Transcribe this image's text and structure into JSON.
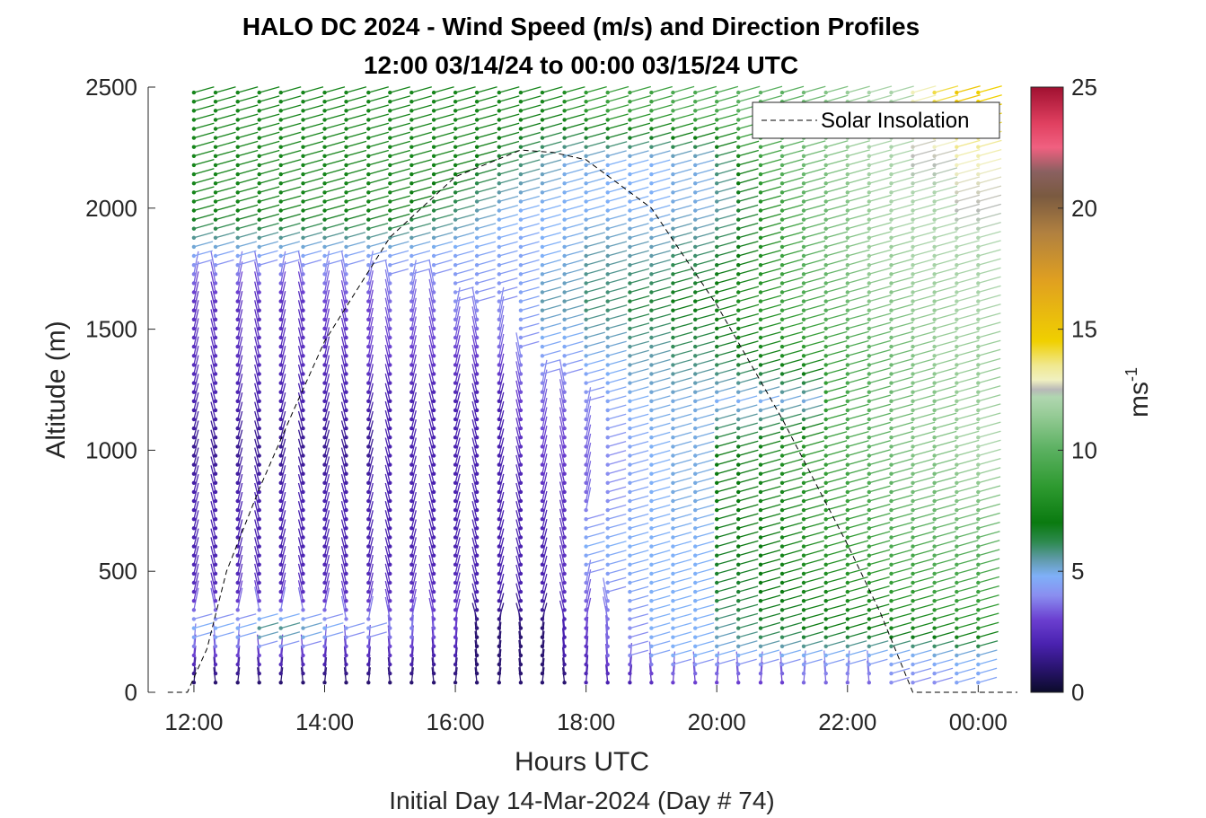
{
  "chart_data": {
    "type": "wind_barb_profile",
    "title_line1": "HALO DC 2024 - Wind Speed (m/s) and Direction Profiles",
    "title_line2": "12:00 03/14/24 to 00:00 03/15/24  UTC",
    "xlabel": "Hours UTC",
    "xlabel2": "Initial Day 14-Mar-2024 (Day # 74)",
    "ylabel": "Altitude (m)",
    "x_ticks": [
      "12:00",
      "14:00",
      "16:00",
      "18:00",
      "20:00",
      "22:00",
      "00:00"
    ],
    "x_tick_hours": [
      12,
      14,
      16,
      18,
      20,
      22,
      24
    ],
    "xlim_hours": [
      11.3,
      24.6
    ],
    "y_ticks": [
      "0",
      "500",
      "1000",
      "1500",
      "2000",
      "2500"
    ],
    "y_tick_values": [
      0,
      500,
      1000,
      1500,
      2000,
      2500
    ],
    "ylim": [
      0,
      2500
    ],
    "colorbar": {
      "label": "ms",
      "label_exponent": "-1",
      "ticks": [
        "0",
        "5",
        "10",
        "15",
        "20",
        "25"
      ],
      "tick_values": [
        0,
        5,
        10,
        15,
        20,
        25
      ],
      "range": [
        0,
        25
      ],
      "stops": [
        {
          "v": 0,
          "c": "#0b0b2a"
        },
        {
          "v": 1,
          "c": "#2a1470"
        },
        {
          "v": 2,
          "c": "#4a22b0"
        },
        {
          "v": 3,
          "c": "#6b3fd0"
        },
        {
          "v": 4,
          "c": "#8a8ef0"
        },
        {
          "v": 4.8,
          "c": "#7fb0f8"
        },
        {
          "v": 5.5,
          "c": "#5f9aa8"
        },
        {
          "v": 6.2,
          "c": "#2e8a50"
        },
        {
          "v": 7,
          "c": "#0a7a10"
        },
        {
          "v": 8.5,
          "c": "#2e9a30"
        },
        {
          "v": 10,
          "c": "#5ab060"
        },
        {
          "v": 11.5,
          "c": "#98cc98"
        },
        {
          "v": 12.2,
          "c": "#b0d6b0"
        },
        {
          "v": 12.5,
          "c": "#b8b8b8"
        },
        {
          "v": 12.9,
          "c": "#f0f0c0"
        },
        {
          "v": 13.5,
          "c": "#f0e890"
        },
        {
          "v": 14.5,
          "c": "#f0d000"
        },
        {
          "v": 17,
          "c": "#e0a020"
        },
        {
          "v": 19,
          "c": "#b08040"
        },
        {
          "v": 20.5,
          "c": "#7a5a40"
        },
        {
          "v": 21.5,
          "c": "#8a6060"
        },
        {
          "v": 22.5,
          "c": "#f06080"
        },
        {
          "v": 23.5,
          "c": "#e04060"
        },
        {
          "v": 25,
          "c": "#a01030"
        }
      ]
    },
    "legend": {
      "entries": [
        "Solar Insolation"
      ],
      "position": "top-right"
    },
    "solar_insolation": {
      "hours": [
        11.6,
        11.9,
        12.0,
        12.2,
        12.5,
        13.0,
        13.5,
        14.0,
        15.0,
        16.0,
        17.0,
        17.5,
        18.0,
        19.0,
        20.0,
        21.0,
        22.0,
        22.5,
        23.0,
        23.5,
        24.0,
        24.6
      ],
      "values": [
        0,
        0,
        60,
        180,
        500,
        840,
        1150,
        1450,
        1880,
        2130,
        2240,
        2230,
        2200,
        2000,
        1600,
        1130,
        610,
        330,
        0,
        0,
        0,
        0
      ]
    },
    "profile_hours": [
      12.0,
      12.33,
      12.67,
      13.0,
      13.33,
      13.67,
      14.0,
      14.33,
      14.67,
      15.0,
      15.33,
      15.67,
      16.0,
      16.33,
      16.67,
      17.0,
      17.33,
      17.67,
      18.0,
      18.33,
      18.67,
      19.0,
      19.33,
      19.67,
      20.0,
      20.33,
      20.67,
      21.0,
      21.33,
      21.67,
      22.0,
      22.33,
      22.67,
      23.0,
      23.33,
      23.67,
      24.0
    ],
    "altitude_levels": [
      50,
      150,
      250,
      400,
      600,
      800,
      1000,
      1200,
      1400,
      1600,
      1800,
      2000,
      2200,
      2400
    ],
    "wind_speed": [
      [
        1.0,
        3.0,
        5.0,
        2.5,
        2.0,
        2.0,
        1.5,
        2.0,
        2.5,
        2.5,
        4.5,
        7.5,
        7.5,
        7.5
      ],
      [
        1.0,
        3.0,
        5.0,
        2.5,
        2.0,
        2.0,
        1.5,
        2.0,
        2.5,
        2.5,
        4.5,
        7.5,
        7.5,
        7.5
      ],
      [
        1.0,
        3.0,
        5.0,
        2.5,
        2.0,
        2.0,
        1.5,
        2.0,
        2.5,
        2.5,
        4.5,
        7.5,
        7.5,
        7.5
      ],
      [
        1.0,
        3.0,
        6.0,
        2.5,
        2.0,
        2.0,
        1.5,
        2.0,
        2.5,
        2.5,
        4.5,
        7.5,
        7.5,
        7.5
      ],
      [
        1.0,
        3.0,
        6.0,
        2.5,
        2.0,
        2.0,
        1.5,
        2.0,
        2.5,
        2.5,
        4.5,
        7.5,
        7.5,
        7.5
      ],
      [
        1.0,
        3.0,
        5.5,
        2.5,
        2.0,
        2.0,
        1.5,
        2.0,
        2.5,
        2.5,
        4.5,
        7.5,
        7.5,
        7.5
      ],
      [
        1.0,
        2.5,
        5.0,
        2.5,
        2.0,
        2.0,
        1.5,
        2.0,
        2.5,
        3.0,
        4.5,
        7.5,
        7.5,
        7.5
      ],
      [
        1.0,
        2.5,
        4.5,
        2.5,
        2.0,
        2.0,
        1.5,
        2.0,
        2.5,
        3.0,
        4.5,
        7.5,
        7.5,
        7.5
      ],
      [
        1.0,
        2.5,
        4.5,
        2.5,
        2.0,
        2.0,
        1.5,
        2.0,
        3.0,
        3.0,
        4.5,
        7.5,
        7.5,
        7.5
      ],
      [
        1.0,
        2.5,
        4.0,
        2.5,
        2.0,
        2.0,
        2.0,
        2.0,
        3.0,
        3.5,
        4.5,
        7.5,
        7.5,
        7.5
      ],
      [
        1.0,
        2.5,
        4.0,
        2.5,
        2.0,
        2.0,
        2.0,
        2.0,
        3.0,
        3.5,
        4.5,
        7.0,
        7.5,
        7.5
      ],
      [
        1.0,
        2.0,
        3.5,
        2.5,
        2.0,
        2.0,
        2.0,
        2.0,
        3.0,
        3.5,
        4.5,
        6.5,
        7.5,
        7.5
      ],
      [
        1.0,
        2.0,
        3.0,
        2.5,
        2.0,
        2.0,
        2.0,
        2.0,
        3.0,
        4.0,
        4.5,
        6.0,
        7.5,
        7.5
      ],
      [
        1.0,
        1.0,
        1.0,
        2.0,
        2.0,
        2.0,
        2.0,
        2.0,
        3.0,
        4.0,
        4.5,
        5.5,
        7.0,
        7.5
      ],
      [
        1.0,
        1.0,
        1.0,
        2.0,
        2.0,
        2.0,
        2.0,
        2.0,
        3.5,
        4.0,
        4.5,
        5.0,
        6.5,
        7.5
      ],
      [
        1.0,
        1.0,
        1.0,
        2.0,
        2.0,
        2.0,
        2.5,
        3.0,
        4.0,
        4.5,
        4.5,
        4.8,
        6.0,
        7.5
      ],
      [
        1.0,
        1.0,
        1.0,
        2.0,
        2.0,
        2.5,
        3.0,
        3.5,
        4.5,
        5.5,
        4.8,
        4.8,
        5.5,
        7.5
      ],
      [
        1.0,
        2.0,
        2.0,
        2.5,
        2.5,
        2.5,
        3.0,
        3.5,
        4.5,
        5.5,
        5.0,
        4.8,
        5.0,
        8.0
      ],
      [
        2.0,
        2.5,
        3.0,
        3.5,
        4.8,
        3.5,
        3.5,
        4.0,
        5.0,
        6.0,
        5.5,
        4.8,
        5.0,
        8.5
      ],
      [
        2.0,
        3.5,
        3.5,
        4.0,
        4.8,
        4.0,
        4.0,
        4.5,
        5.0,
        6.0,
        5.5,
        4.8,
        4.8,
        9.0
      ],
      [
        2.0,
        4.0,
        4.0,
        4.5,
        4.8,
        4.5,
        4.5,
        4.8,
        5.5,
        6.5,
        5.5,
        4.8,
        4.8,
        9.0
      ],
      [
        2.5,
        4.5,
        4.8,
        4.8,
        4.8,
        4.8,
        4.8,
        5.0,
        5.5,
        6.5,
        5.5,
        4.8,
        4.8,
        9.0
      ],
      [
        3.0,
        4.8,
        4.8,
        4.8,
        4.8,
        5.0,
        5.0,
        5.0,
        6.0,
        7.0,
        6.0,
        5.0,
        5.0,
        9.5
      ],
      [
        3.0,
        4.8,
        4.8,
        4.8,
        4.8,
        5.0,
        5.0,
        5.0,
        6.0,
        7.0,
        6.0,
        5.0,
        5.0,
        9.5
      ],
      [
        3.0,
        4.8,
        5.5,
        6.5,
        6.8,
        7.0,
        7.0,
        4.8,
        6.5,
        7.5,
        6.5,
        5.5,
        6.0,
        9.5
      ],
      [
        3.0,
        4.8,
        6.0,
        6.5,
        7.0,
        7.0,
        7.0,
        4.8,
        7.0,
        8.0,
        7.0,
        6.5,
        7.5,
        10.0
      ],
      [
        3.0,
        4.8,
        6.5,
        7.0,
        7.0,
        7.5,
        7.5,
        4.8,
        7.5,
        8.5,
        8.0,
        8.0,
        9.0,
        10.0
      ],
      [
        3.0,
        4.8,
        6.5,
        7.0,
        7.5,
        7.5,
        8.0,
        5.0,
        8.0,
        9.0,
        9.0,
        9.0,
        10.0,
        10.0
      ],
      [
        3.5,
        4.8,
        7.0,
        7.5,
        8.0,
        8.0,
        8.5,
        5.0,
        8.5,
        9.5,
        10.0,
        10.0,
        10.5,
        10.5
      ],
      [
        3.5,
        4.8,
        7.0,
        7.5,
        8.5,
        8.5,
        9.0,
        8.5,
        9.0,
        10.0,
        10.5,
        10.5,
        11.0,
        11.0
      ],
      [
        3.5,
        4.8,
        7.0,
        8.0,
        8.5,
        9.0,
        9.5,
        9.5,
        9.5,
        10.5,
        11.0,
        11.0,
        11.5,
        11.5
      ],
      [
        3.5,
        4.8,
        7.0,
        8.0,
        9.0,
        9.5,
        10.0,
        10.0,
        10.0,
        11.0,
        11.5,
        11.5,
        12.0,
        12.0
      ],
      [
        4.0,
        4.8,
        7.5,
        8.5,
        9.5,
        10.0,
        10.5,
        10.5,
        10.5,
        11.0,
        11.5,
        12.0,
        12.0,
        12.0
      ],
      [
        4.0,
        4.8,
        7.5,
        8.5,
        9.5,
        10.5,
        11.0,
        11.0,
        11.0,
        11.5,
        12.0,
        12.0,
        12.5,
        13.0
      ],
      [
        4.0,
        5.0,
        7.5,
        9.0,
        10.0,
        10.5,
        11.0,
        11.0,
        11.5,
        11.5,
        12.0,
        12.0,
        12.5,
        14.0
      ],
      [
        4.5,
        5.0,
        8.0,
        9.0,
        10.0,
        11.0,
        11.5,
        11.5,
        11.5,
        12.0,
        12.0,
        12.5,
        13.0,
        15.0
      ],
      [
        4.5,
        5.0,
        8.0,
        9.0,
        10.0,
        11.0,
        12.0,
        11.5,
        11.5,
        12.0,
        12.0,
        12.5,
        13.0,
        14.5
      ]
    ]
  }
}
